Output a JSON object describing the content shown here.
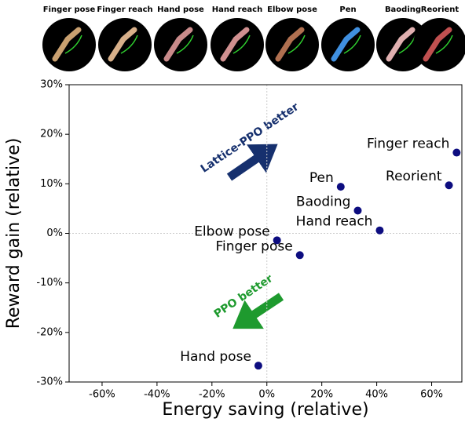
{
  "tasks": [
    "Finger pose",
    "Finger reach",
    "Hand pose",
    "Hand reach",
    "Elbow pose",
    "Pen",
    "Baoding",
    "Reorient"
  ],
  "chart_data": {
    "type": "scatter",
    "xlabel": "Energy saving (relative)",
    "ylabel": "Reward gain (relative)",
    "labels": [
      "Finger reach",
      "Reorient",
      "Pen",
      "Baoding",
      "Hand reach",
      "Elbow pose",
      "Finger pose",
      "Hand pose"
    ],
    "x": [
      69.1,
      66.3,
      26.9,
      33.1,
      41.1,
      3.7,
      12,
      -3.1
    ],
    "values": [
      16.3,
      9.7,
      9.4,
      4.6,
      0.6,
      -1.4,
      -4.4,
      -26.7
    ],
    "color": "#0d0d80",
    "xlim": [
      -72,
      71
    ],
    "ylim": [
      -30,
      30
    ],
    "xticks": [
      {
        "value": -60,
        "label": "-60%"
      },
      {
        "value": -40,
        "label": "-40%"
      },
      {
        "value": -20,
        "label": "-20%"
      },
      {
        "value": 0,
        "label": "0%"
      },
      {
        "value": 20,
        "label": "20%"
      },
      {
        "value": 40,
        "label": "40%"
      },
      {
        "value": 60,
        "label": "60%"
      }
    ],
    "yticks": [
      {
        "value": -30,
        "label": "-30%"
      },
      {
        "value": -20,
        "label": "-20%"
      },
      {
        "value": -10,
        "label": "-10%"
      },
      {
        "value": 0,
        "label": "0%"
      },
      {
        "value": 10,
        "label": "10%"
      },
      {
        "value": 20,
        "label": "20%"
      },
      {
        "value": 30,
        "label": "30%"
      }
    ],
    "annotations": [
      "Lattice-PPO better",
      "PPO better"
    ]
  }
}
